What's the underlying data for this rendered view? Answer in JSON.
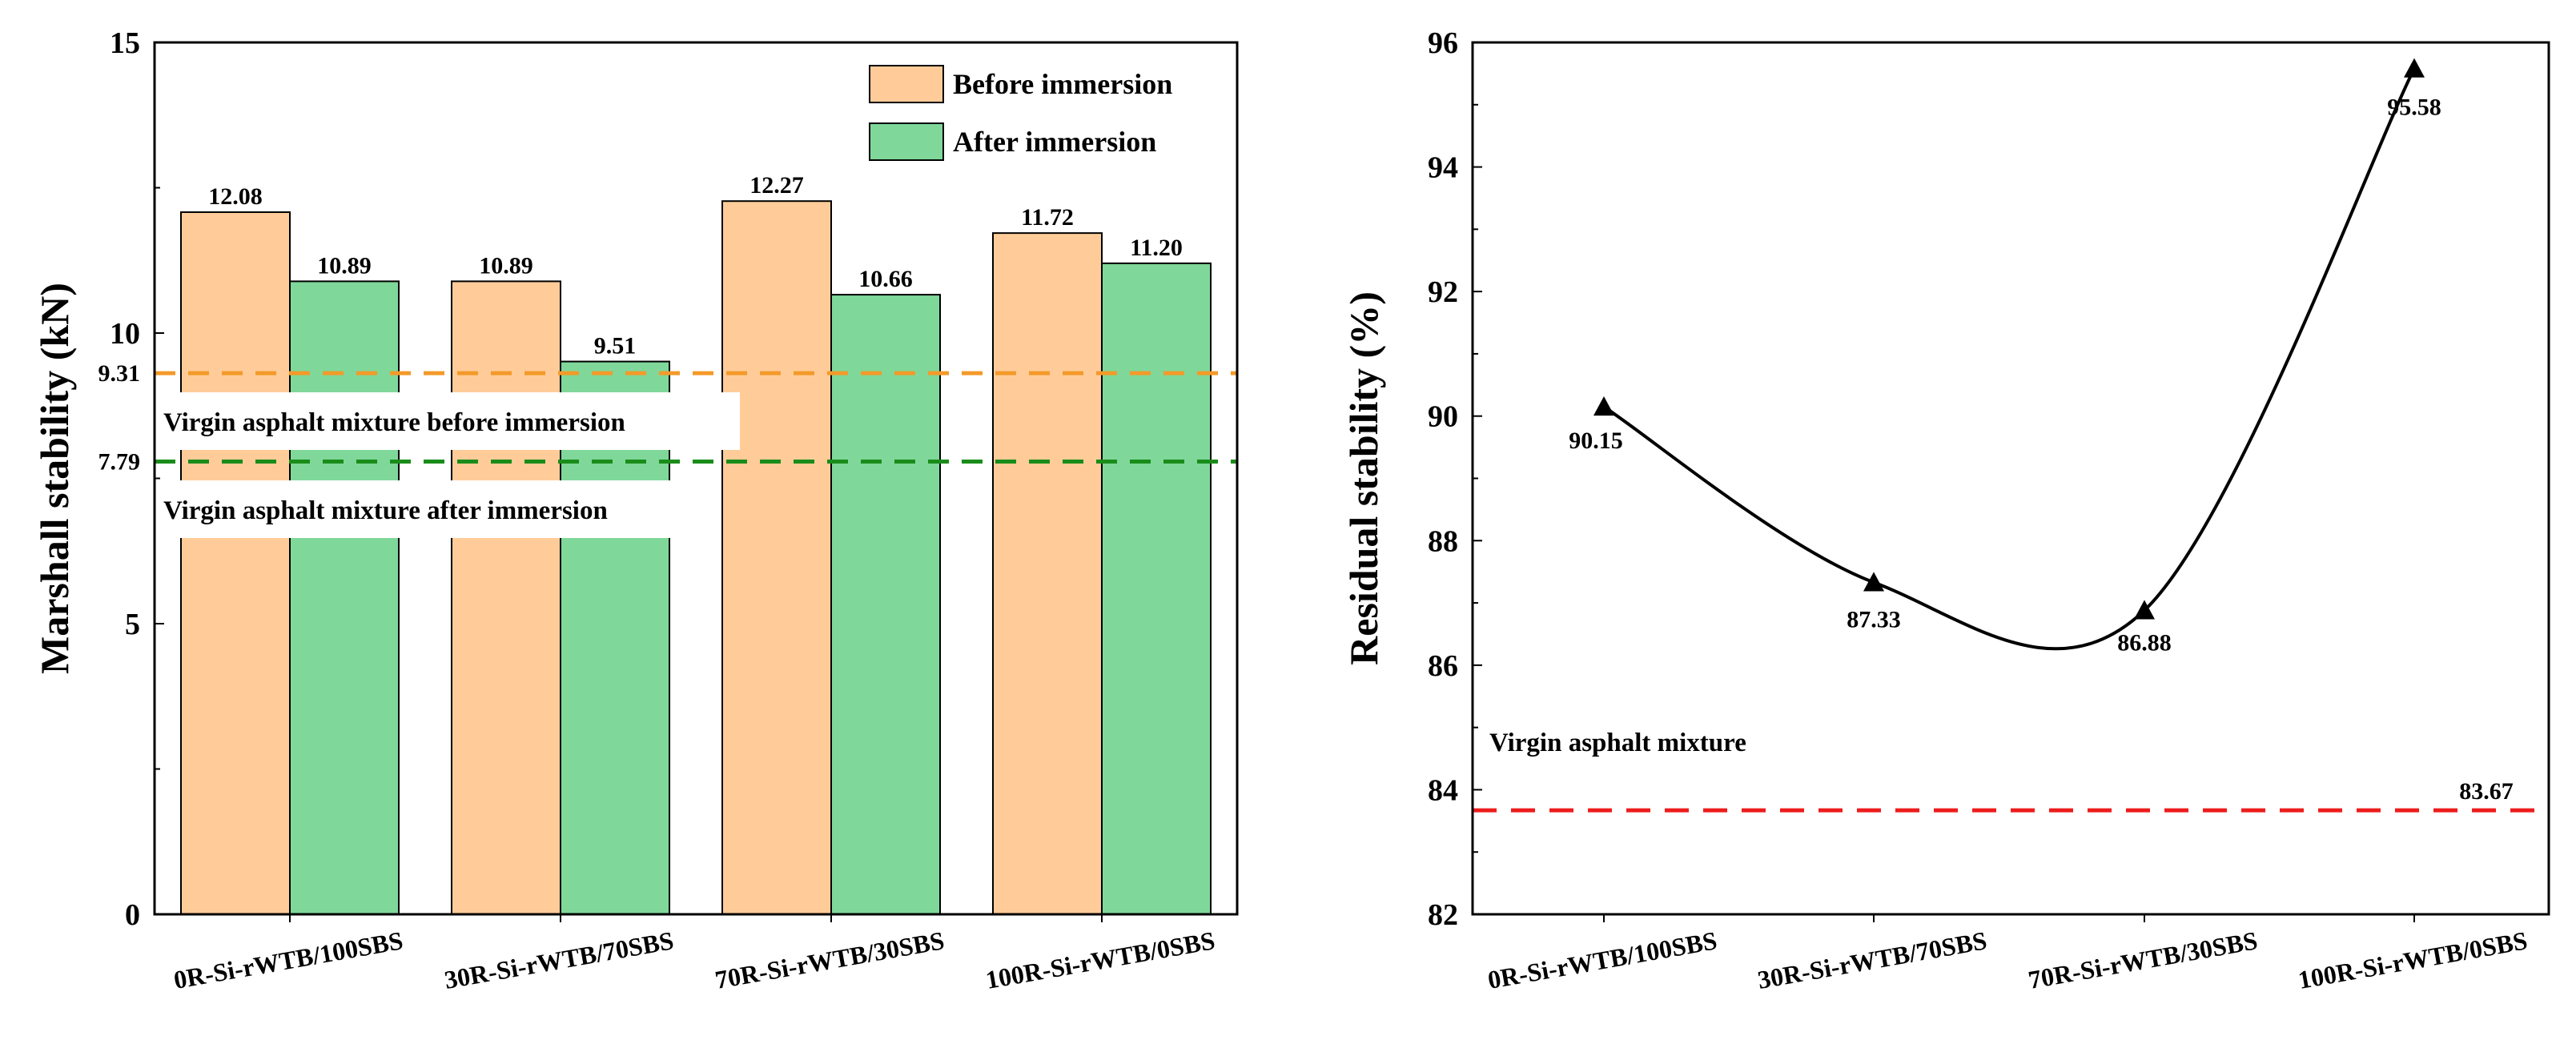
{
  "chart_data": [
    {
      "type": "bar",
      "ylabel": "Marshall stability (kN)",
      "xlabel": "",
      "ylim": [
        0,
        15
      ],
      "yticks": [
        0,
        5,
        10,
        15
      ],
      "categories": [
        "0R-Si-rWTB/100SBS",
        "30R-Si-rWTB/70SBS",
        "70R-Si-rWTB/30SBS",
        "100R-Si-rWTB/0SBS"
      ],
      "series": [
        {
          "name": "Before immersion",
          "values": [
            12.08,
            10.89,
            12.27,
            11.72
          ],
          "labels": [
            "12.08",
            "10.89",
            "12.27",
            "11.72"
          ],
          "color": "#FFCC99"
        },
        {
          "name": "After immersion",
          "values": [
            10.89,
            9.51,
            10.66,
            11.2
          ],
          "labels": [
            "10.89",
            "9.51",
            "10.66",
            "11.20"
          ],
          "color": "#7FD89A"
        }
      ],
      "reference_lines": [
        {
          "value": 9.31,
          "tick_label": "9.31",
          "label": "Virgin asphalt mixture before immersion",
          "color": "#F39A2A"
        },
        {
          "value": 7.79,
          "tick_label": "7.79",
          "label": "Virgin asphalt mixture after immersion",
          "color": "#1A8C1A"
        }
      ],
      "legend_position": "top-right",
      "grid": false
    },
    {
      "type": "line",
      "ylabel": "Residual stability (%)",
      "xlabel": "",
      "ylim": [
        82,
        96
      ],
      "yticks": [
        82,
        84,
        86,
        88,
        90,
        92,
        94,
        96
      ],
      "categories": [
        "0R-Si-rWTB/100SBS",
        "30R-Si-rWTB/70SBS",
        "70R-Si-rWTB/30SBS",
        "100R-Si-rWTB/0SBS"
      ],
      "values": [
        90.15,
        87.33,
        86.88,
        95.58
      ],
      "labels": [
        "90.15",
        "87.33",
        "86.88",
        "95.58"
      ],
      "marker": "triangle",
      "line_color": "#000000",
      "reference_line": {
        "value": 83.67,
        "value_label": "83.67",
        "label": "Virgin asphalt mixture",
        "color": "#EE1C1C"
      },
      "grid": false
    }
  ]
}
